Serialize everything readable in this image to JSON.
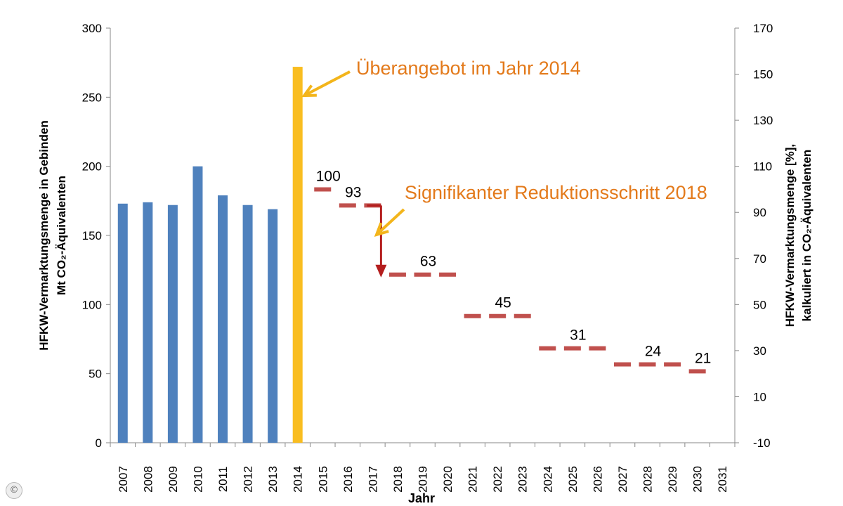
{
  "chart_data": {
    "type": "bar",
    "xlabel": "Jahr",
    "ylabel_left": [
      "HFKW-Vermarktungsmenge in Gebinden",
      "Mt CO₂-Äquivalenten"
    ],
    "ylabel_right": [
      "HFKW-Vermarktungsmenge [%],",
      "kalkuliert in CO₂-Äquivalenten"
    ],
    "categories": [
      "2007",
      "2008",
      "2009",
      "2010",
      "2011",
      "2012",
      "2013",
      "2014",
      "2015",
      "2016",
      "2017",
      "2018",
      "2019",
      "2020",
      "2021",
      "2022",
      "2023",
      "2024",
      "2025",
      "2026",
      "2027",
      "2028",
      "2029",
      "2030",
      "2031"
    ],
    "ylim_left": [
      0,
      300
    ],
    "yticks_left": [
      0,
      50,
      100,
      150,
      200,
      250,
      300
    ],
    "ylim_right": [
      -10,
      170
    ],
    "yticks_right": [
      -10,
      10,
      30,
      50,
      70,
      90,
      110,
      130,
      150,
      170
    ],
    "grid": false,
    "colors": {
      "bars": "#4f81bd",
      "highlight": "#f9bd20",
      "steps": "#c0504d",
      "arrow_red": "#b41e1e",
      "annotation": "#e37a1b",
      "pointer": "#f3b51b"
    },
    "series": [
      {
        "axis": "left",
        "x": [
          "2007",
          "2008",
          "2009",
          "2010",
          "2011",
          "2012",
          "2013",
          "2014"
        ],
        "values": [
          173,
          174,
          172,
          200,
          179,
          172,
          169,
          272
        ]
      },
      {
        "axis": "right",
        "x": [
          "2015",
          "2016",
          "2017",
          "2018",
          "2019",
          "2020",
          "2021",
          "2022",
          "2023",
          "2024",
          "2025",
          "2026",
          "2027",
          "2028",
          "2029",
          "2030"
        ],
        "values": [
          100,
          93,
          93,
          63,
          63,
          63,
          45,
          45,
          45,
          31,
          31,
          31,
          24,
          24,
          24,
          21
        ]
      }
    ],
    "data_labels": [
      {
        "x": "2015",
        "text": "100"
      },
      {
        "x": "2016",
        "text": "93"
      },
      {
        "x": "2019",
        "text": "63"
      },
      {
        "x": "2022",
        "text": "45"
      },
      {
        "x": "2025",
        "text": "31"
      },
      {
        "x": "2028",
        "text": "24"
      },
      {
        "x": "2030",
        "text": "21"
      }
    ],
    "annotations": [
      {
        "text": "Überangebot im Jahr 2014",
        "points_to": "2014"
      },
      {
        "text": "Signifikanter Reduktionsschritt 2018",
        "points_to": "2018"
      }
    ]
  },
  "copyright_symbol": "©"
}
